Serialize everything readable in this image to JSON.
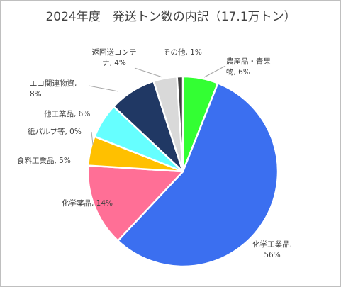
{
  "chart_data": {
    "type": "pie",
    "title": "2024年度　発送トン数の内訳（17.1万トン）",
    "slices": [
      {
        "label": "農産品・青果物",
        "value": 6,
        "display": [
          "農産品・青果",
          "物, 6%"
        ],
        "color": "#33ff33"
      },
      {
        "label": "化学工業品",
        "value": 56,
        "display": [
          "化学工業品,",
          "56%"
        ],
        "color": "#3b6ff0"
      },
      {
        "label": "化学薬品",
        "value": 14,
        "display": [
          "化学薬品, 14%"
        ],
        "color": "#ff6f96"
      },
      {
        "label": "食料工業品",
        "value": 5,
        "display": [
          "食料工業品, 5%"
        ],
        "color": "#ffc000"
      },
      {
        "label": "紙パルプ等",
        "value": 0,
        "display": [
          "紙パルプ等, 0%"
        ],
        "color": "#f5e6d0"
      },
      {
        "label": "他工業品",
        "value": 6,
        "display": [
          "他工業品, 6%"
        ],
        "color": "#66ffff"
      },
      {
        "label": "エコ関連物資",
        "value": 8,
        "display": [
          "エコ関連物資,",
          "8%"
        ],
        "color": "#203864"
      },
      {
        "label": "返回送コンテナ",
        "value": 4,
        "display": [
          "返回送コンテ",
          "ナ, 4%"
        ],
        "color": "#d9d9d9"
      },
      {
        "label": "その他",
        "value": 1,
        "display": [
          "その他, 1%"
        ],
        "color": "#404040"
      }
    ]
  }
}
